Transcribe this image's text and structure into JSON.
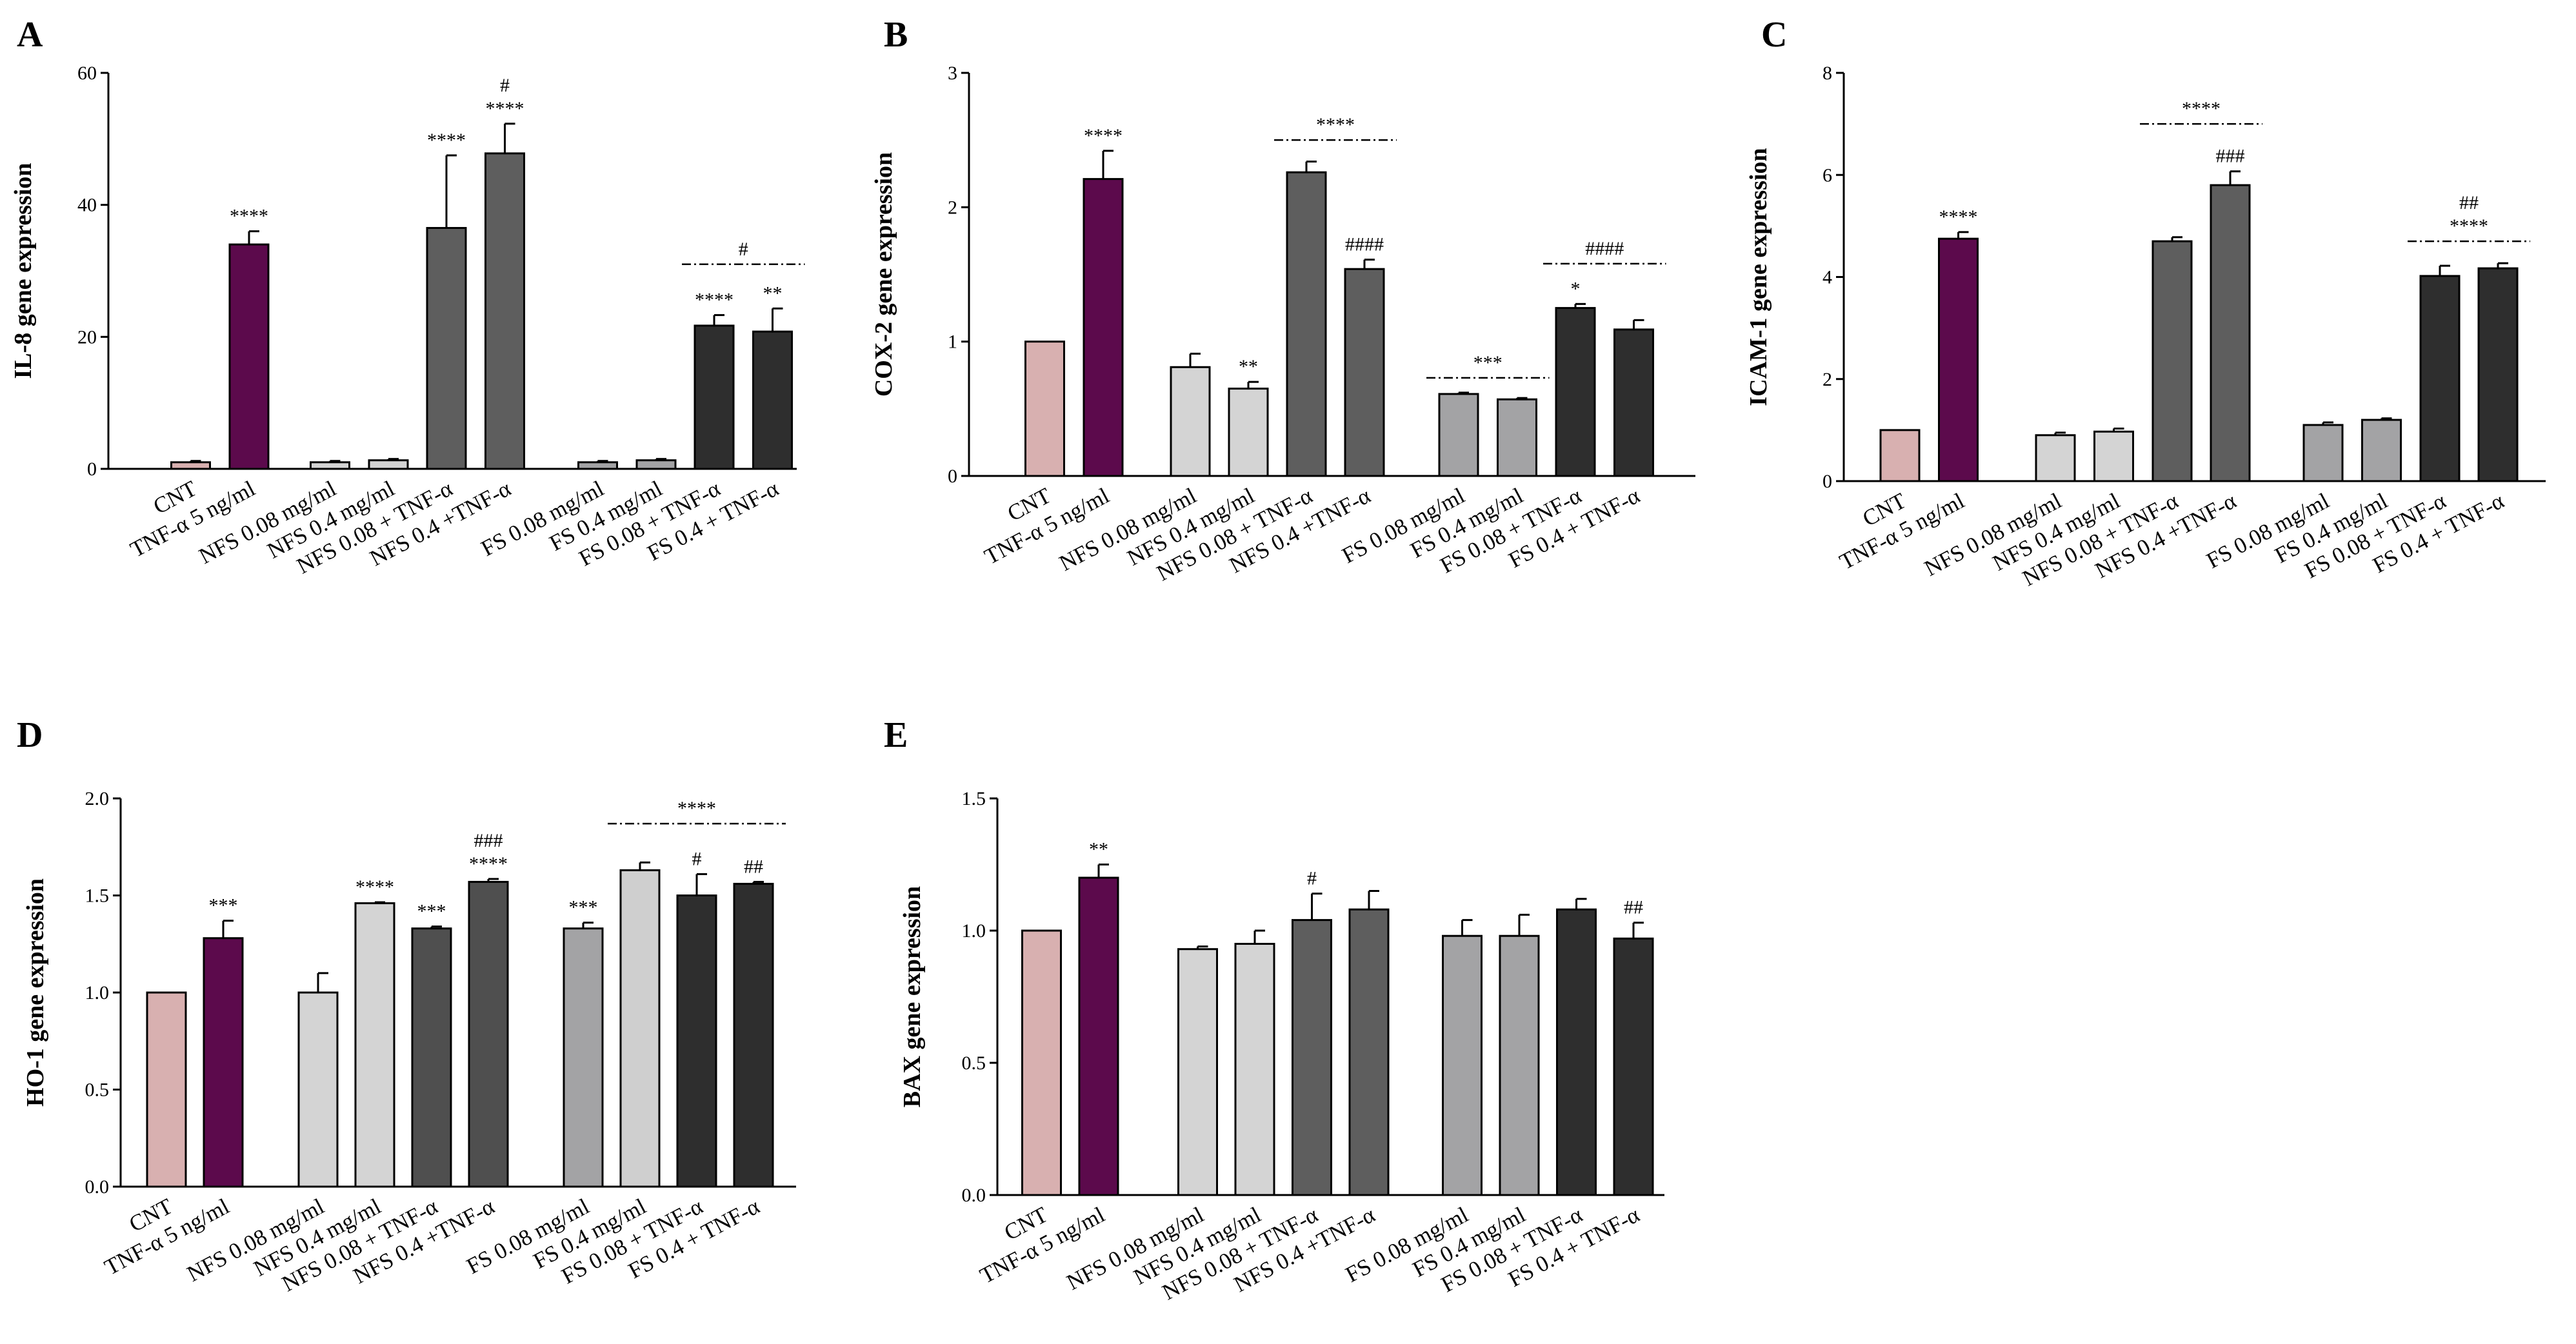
{
  "figure": {
    "background": "#ffffff"
  },
  "colors": {
    "CNT": "#d8b0b0",
    "TNF": "#5c0a4c",
    "NFS_plain": "#d4d4d4",
    "NFS_TNF": "#5e5e5e",
    "FS_plain": "#a3a3a5",
    "FS_TNF": "#2e2e2e",
    "HO1_NFS_TNF": "#4f4f4f",
    "HO1_FS_plain_second": "#cfcfcf"
  },
  "chart_data": [
    {
      "panel": "A",
      "type": "bar",
      "ylabel": "IL-8 gene expression",
      "ylim": [
        0,
        60
      ],
      "yticks": [
        "0",
        "20",
        "40",
        "60"
      ],
      "categories": [
        "CNT",
        "TNF-α 5 ng/ml",
        "NFS 0.08 mg/ml",
        "NFS 0.4 mg/ml",
        "NFS 0.08 + TNF-α",
        "NFS 0.4 +TNF-α",
        "FS 0.08 mg/ml",
        "FS 0.4 mg/ml",
        "FS 0.08 + TNF-α",
        "FS 0.4 + TNF-α"
      ],
      "values": [
        1.0,
        34.0,
        1.0,
        1.3,
        36.5,
        47.8,
        1.0,
        1.3,
        21.7,
        20.8
      ],
      "errors": [
        0.2,
        2.0,
        0.2,
        0.2,
        11.0,
        4.5,
        0.2,
        0.2,
        1.6,
        3.5
      ],
      "colors": [
        "#d8b0b0",
        "#5c0a4c",
        "#d4d4d4",
        "#d4d4d4",
        "#5e5e5e",
        "#5e5e5e",
        "#a3a3a5",
        "#a3a3a5",
        "#2e2e2e",
        "#2e2e2e"
      ],
      "bar_annotations": [
        "",
        "****",
        "",
        "",
        "****",
        "#\n****",
        "",
        "",
        "****",
        "**"
      ],
      "bracket_annotations": [
        {
          "from": 8,
          "to": 9,
          "level": 31,
          "label": "#"
        }
      ]
    },
    {
      "panel": "B",
      "type": "bar",
      "ylabel": "COX-2 gene expression",
      "ylim": [
        0,
        3
      ],
      "yticks": [
        "0",
        "1",
        "2",
        "3"
      ],
      "categories": [
        "CNT",
        "TNF-α 5 ng/ml",
        "NFS 0.08 mg/ml",
        "NFS 0.4 mg/ml",
        "NFS 0.08 + TNF-α",
        "NFS 0.4 +TNF-α",
        "FS 0.08 mg/ml",
        "FS 0.4 mg/ml",
        "FS 0.08 + TNF-α",
        "FS 0.4 + TNF-α"
      ],
      "values": [
        1.0,
        2.21,
        0.81,
        0.65,
        2.26,
        1.54,
        0.61,
        0.57,
        1.25,
        1.09
      ],
      "errors": [
        0.0,
        0.21,
        0.1,
        0.05,
        0.08,
        0.07,
        0.01,
        0.01,
        0.03,
        0.07
      ],
      "colors": [
        "#d8b0b0",
        "#5c0a4c",
        "#d4d4d4",
        "#d4d4d4",
        "#5e5e5e",
        "#5e5e5e",
        "#a3a3a5",
        "#a3a3a5",
        "#2e2e2e",
        "#2e2e2e"
      ],
      "bar_annotations": [
        "",
        "****",
        "",
        "**",
        "",
        "####",
        "",
        "",
        "*",
        ""
      ],
      "bracket_annotations": [
        {
          "from": 4,
          "to": 5,
          "level": 2.5,
          "label": "****"
        },
        {
          "from": 6,
          "to": 7,
          "level": 0.73,
          "label": "***"
        },
        {
          "from": 8,
          "to": 9,
          "level": 1.58,
          "label": "####"
        }
      ]
    },
    {
      "panel": "C",
      "type": "bar",
      "ylabel": "ICAM-1 gene expression",
      "ylim": [
        0,
        8
      ],
      "yticks": [
        "0",
        "2",
        "4",
        "6",
        "8"
      ],
      "categories": [
        "CNT",
        "TNF-α 5 ng/ml",
        "NFS 0.08 mg/ml",
        "NFS 0.4 mg/ml",
        "NFS 0.08 + TNF-α",
        "NFS 0.4 +TNF-α",
        "FS 0.08 mg/ml",
        "FS 0.4 mg/ml",
        "FS 0.08 + TNF-α",
        "FS 0.4 + TNF-α"
      ],
      "values": [
        1.0,
        4.75,
        0.9,
        0.97,
        4.7,
        5.8,
        1.1,
        1.2,
        4.02,
        4.17
      ],
      "errors": [
        0.0,
        0.13,
        0.05,
        0.06,
        0.08,
        0.27,
        0.05,
        0.03,
        0.2,
        0.1
      ],
      "colors": [
        "#d8b0b0",
        "#5c0a4c",
        "#d4d4d4",
        "#d4d4d4",
        "#5e5e5e",
        "#5e5e5e",
        "#a3a3a5",
        "#a3a3a5",
        "#2e2e2e",
        "#2e2e2e"
      ],
      "bar_annotations": [
        "",
        "****",
        "",
        "",
        "",
        "###",
        "",
        "",
        "",
        ""
      ],
      "bracket_annotations": [
        {
          "from": 4,
          "to": 5,
          "level": 7.0,
          "label": "****"
        },
        {
          "from": 8,
          "to": 9,
          "level": 4.7,
          "label": "##\n****"
        }
      ]
    },
    {
      "panel": "D",
      "type": "bar",
      "ylabel": "HO-1 gene expression",
      "ylim": [
        0,
        2.0
      ],
      "yticks": [
        "0.0",
        "0.5",
        "1.0",
        "1.5",
        "2.0"
      ],
      "categories": [
        "CNT",
        "TNF-α 5 ng/ml",
        "NFS 0.08 mg/ml",
        "NFS 0.4 mg/ml",
        "NFS 0.08 + TNF-α",
        "NFS 0.4 +TNF-α",
        "FS 0.08 mg/ml",
        "FS 0.4 mg/ml",
        "FS 0.08 + TNF-α",
        "FS 0.4 + TNF-α"
      ],
      "values": [
        1.0,
        1.28,
        1.0,
        1.46,
        1.33,
        1.57,
        1.33,
        1.63,
        1.5,
        1.56
      ],
      "errors": [
        0.0,
        0.09,
        0.1,
        0.005,
        0.01,
        0.015,
        0.03,
        0.04,
        0.11,
        0.01
      ],
      "colors": [
        "#d8b0b0",
        "#5c0a4c",
        "#d4d4d4",
        "#d4d4d4",
        "#4f4f4f",
        "#4f4f4f",
        "#a3a3a5",
        "#cfcfcf",
        "#2e2e2e",
        "#2e2e2e"
      ],
      "bar_annotations": [
        "",
        "***",
        "",
        "****",
        "***",
        "###\n****",
        "***",
        "",
        "#",
        "##"
      ],
      "bracket_annotations": [
        {
          "from": 7,
          "to": 9,
          "level": 1.87,
          "label": "****"
        }
      ]
    },
    {
      "panel": "E",
      "type": "bar",
      "ylabel": "BAX gene expression",
      "ylim": [
        0,
        1.5
      ],
      "yticks": [
        "0.0",
        "0.5",
        "1.0",
        "1.5"
      ],
      "categories": [
        "CNT",
        "TNF-α 5 ng/ml",
        "NFS 0.08 mg/ml",
        "NFS 0.4 mg/ml",
        "NFS 0.08 + TNF-α",
        "NFS 0.4 +TNF-α",
        "FS 0.08 mg/ml",
        "FS 0.4 mg/ml",
        "FS 0.08 + TNF-α",
        "FS 0.4 + TNF-α"
      ],
      "values": [
        1.0,
        1.2,
        0.93,
        0.95,
        1.04,
        1.08,
        0.98,
        0.98,
        1.08,
        0.97
      ],
      "errors": [
        0.0,
        0.05,
        0.01,
        0.05,
        0.1,
        0.07,
        0.06,
        0.08,
        0.04,
        0.06
      ],
      "colors": [
        "#d8b0b0",
        "#5c0a4c",
        "#d4d4d4",
        "#d4d4d4",
        "#5e5e5e",
        "#5e5e5e",
        "#a3a3a5",
        "#a3a3a5",
        "#2e2e2e",
        "#2e2e2e"
      ],
      "bar_annotations": [
        "",
        "**",
        "",
        "",
        "#",
        "",
        "",
        "",
        "",
        "##"
      ],
      "bracket_annotations": []
    }
  ]
}
